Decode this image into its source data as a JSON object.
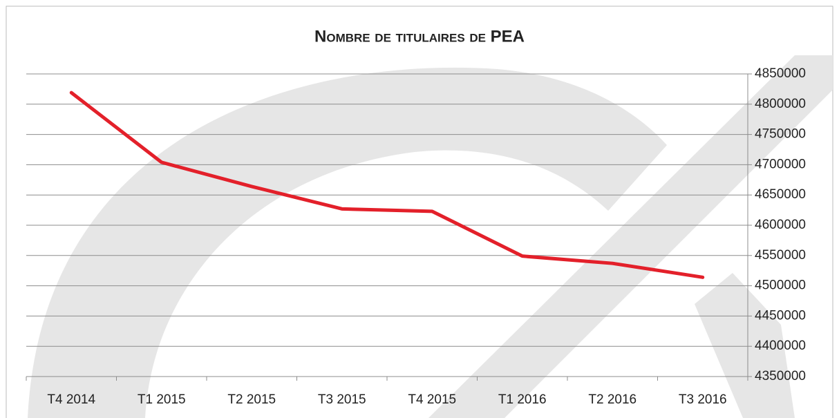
{
  "chart_data": {
    "type": "line",
    "title": "Nombre de titulaires de PEA",
    "categories": [
      "T4 2014",
      "T1 2015",
      "T2 2015",
      "T3 2015",
      "T4 2015",
      "T1 2016",
      "T2 2016",
      "T3 2016"
    ],
    "values": [
      4819000,
      4704000,
      4664000,
      4627000,
      4623000,
      4549000,
      4537000,
      4514000
    ],
    "color": "#e3202a",
    "ylim": [
      4350000,
      4850000
    ],
    "yticks": [
      4350000,
      4400000,
      4450000,
      4500000,
      4550000,
      4600000,
      4650000,
      4700000,
      4750000,
      4800000,
      4850000
    ],
    "grid": true
  }
}
